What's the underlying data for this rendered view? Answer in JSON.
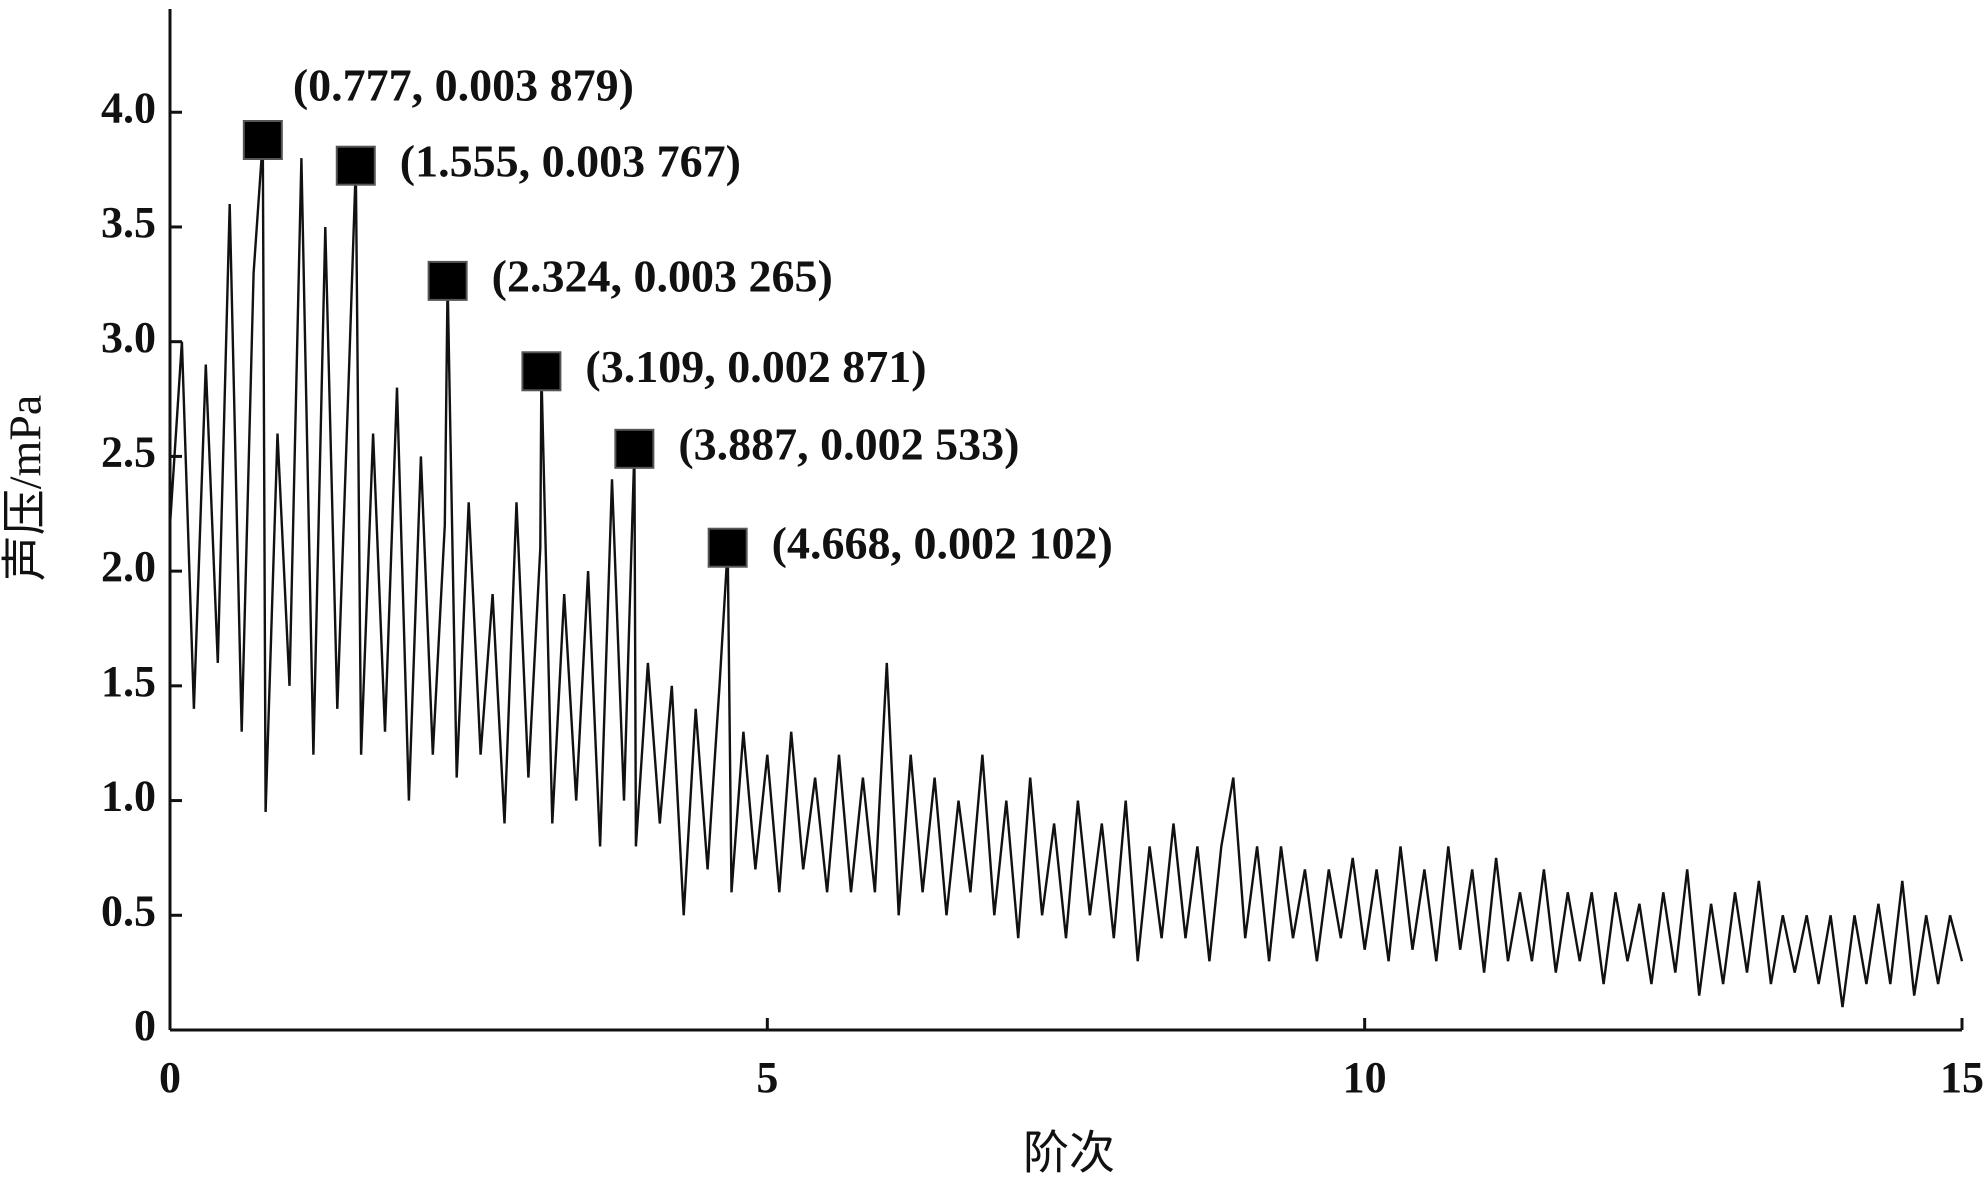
{
  "chart_data": {
    "type": "line",
    "x_label": "阶次",
    "y_label": "声压/mPa",
    "xlim": [
      0,
      15
    ],
    "xticks": [
      0,
      5,
      10,
      15
    ],
    "ylim": [
      0,
      4.45
    ],
    "yticks": [
      0,
      0.5,
      {
        "value": 1,
        "label": "1.0"
      },
      1.5,
      {
        "value": 2,
        "label": "2.0"
      },
      2.5,
      {
        "value": 3,
        "label": "3.0"
      },
      3.5,
      {
        "value": 4,
        "label": "4.0"
      }
    ],
    "series": [
      {
        "color": "#111111",
        "x": [
          0,
          0.1,
          0.2,
          0.3,
          0.4,
          0.5,
          0.6,
          0.7,
          0.777,
          0.8,
          0.9,
          1.0,
          1.1,
          1.2,
          1.3,
          1.4,
          1.5,
          1.555,
          1.6,
          1.7,
          1.8,
          1.9,
          2.0,
          2.1,
          2.2,
          2.3,
          2.324,
          2.4,
          2.5,
          2.6,
          2.7,
          2.8,
          2.9,
          3.0,
          3.1,
          3.109,
          3.2,
          3.3,
          3.4,
          3.5,
          3.6,
          3.7,
          3.8,
          3.887,
          3.9,
          4.0,
          4.1,
          4.2,
          4.3,
          4.4,
          4.5,
          4.6,
          4.668,
          4.7,
          4.8,
          4.9,
          5.0,
          5.1,
          5.2,
          5.3,
          5.4,
          5.5,
          5.6,
          5.7,
          5.8,
          5.9,
          6.0,
          6.1,
          6.2,
          6.3,
          6.4,
          6.5,
          6.6,
          6.7,
          6.8,
          6.9,
          7.0,
          7.1,
          7.2,
          7.3,
          7.4,
          7.5,
          7.6,
          7.7,
          7.8,
          7.9,
          8.0,
          8.1,
          8.2,
          8.3,
          8.4,
          8.5,
          8.6,
          8.7,
          8.8,
          8.9,
          9.0,
          9.1,
          9.2,
          9.3,
          9.4,
          9.5,
          9.6,
          9.7,
          9.8,
          9.9,
          10.0,
          10.1,
          10.2,
          10.3,
          10.4,
          10.5,
          10.6,
          10.7,
          10.8,
          10.9,
          11.0,
          11.1,
          11.2,
          11.3,
          11.4,
          11.5,
          11.6,
          11.7,
          11.8,
          11.9,
          12.0,
          12.1,
          12.2,
          12.3,
          12.4,
          12.5,
          12.6,
          12.7,
          12.8,
          12.9,
          13.0,
          13.1,
          13.2,
          13.3,
          13.4,
          13.5,
          13.6,
          13.7,
          13.8,
          13.9,
          14.0,
          14.1,
          14.2,
          14.3,
          14.4,
          14.5,
          14.6,
          14.7,
          14.8,
          14.9,
          15.0
        ],
        "values": [
          2.2,
          3.0,
          1.4,
          2.9,
          1.6,
          3.6,
          1.3,
          3.3,
          3.879,
          0.95,
          2.6,
          1.5,
          3.8,
          1.2,
          3.5,
          1.4,
          2.9,
          3.767,
          1.2,
          2.6,
          1.3,
          2.8,
          1.0,
          2.5,
          1.2,
          2.2,
          3.265,
          1.1,
          2.3,
          1.2,
          1.9,
          0.9,
          2.3,
          1.1,
          2.1,
          2.871,
          0.9,
          1.9,
          1.0,
          2.0,
          0.8,
          2.4,
          1.0,
          2.533,
          0.8,
          1.6,
          0.9,
          1.5,
          0.5,
          1.4,
          0.7,
          1.5,
          2.102,
          0.6,
          1.3,
          0.7,
          1.2,
          0.6,
          1.3,
          0.7,
          1.1,
          0.6,
          1.2,
          0.6,
          1.1,
          0.6,
          1.6,
          0.5,
          1.2,
          0.6,
          1.1,
          0.5,
          1.0,
          0.6,
          1.2,
          0.5,
          1.0,
          0.4,
          1.1,
          0.5,
          0.9,
          0.4,
          1.0,
          0.5,
          0.9,
          0.4,
          1.0,
          0.3,
          0.8,
          0.4,
          0.9,
          0.4,
          0.8,
          0.3,
          0.8,
          1.1,
          0.4,
          0.8,
          0.3,
          0.8,
          0.4,
          0.7,
          0.3,
          0.7,
          0.4,
          0.75,
          0.35,
          0.7,
          0.3,
          0.8,
          0.35,
          0.7,
          0.3,
          0.8,
          0.35,
          0.7,
          0.25,
          0.75,
          0.3,
          0.6,
          0.3,
          0.7,
          0.25,
          0.6,
          0.3,
          0.6,
          0.2,
          0.6,
          0.3,
          0.55,
          0.2,
          0.6,
          0.25,
          0.7,
          0.15,
          0.55,
          0.2,
          0.6,
          0.25,
          0.65,
          0.2,
          0.5,
          0.25,
          0.5,
          0.2,
          0.5,
          0.1,
          0.5,
          0.2,
          0.55,
          0.2,
          0.65,
          0.15,
          0.5,
          0.2,
          0.5,
          0.3
        ]
      }
    ],
    "annotations": [
      {
        "x": 0.777,
        "y": 3.879,
        "label": "(0.777, 0.003 879)"
      },
      {
        "x": 1.555,
        "y": 3.767,
        "label": "(1.555, 0.003 767)"
      },
      {
        "x": 2.324,
        "y": 3.265,
        "label": "(2.324, 0.003 265)"
      },
      {
        "x": 3.109,
        "y": 2.871,
        "label": "(3.109, 0.002 871)"
      },
      {
        "x": 3.887,
        "y": 2.533,
        "label": "(3.887, 0.002 533)"
      },
      {
        "x": 4.668,
        "y": 2.102,
        "label": "(4.668, 0.002 102)"
      }
    ]
  }
}
